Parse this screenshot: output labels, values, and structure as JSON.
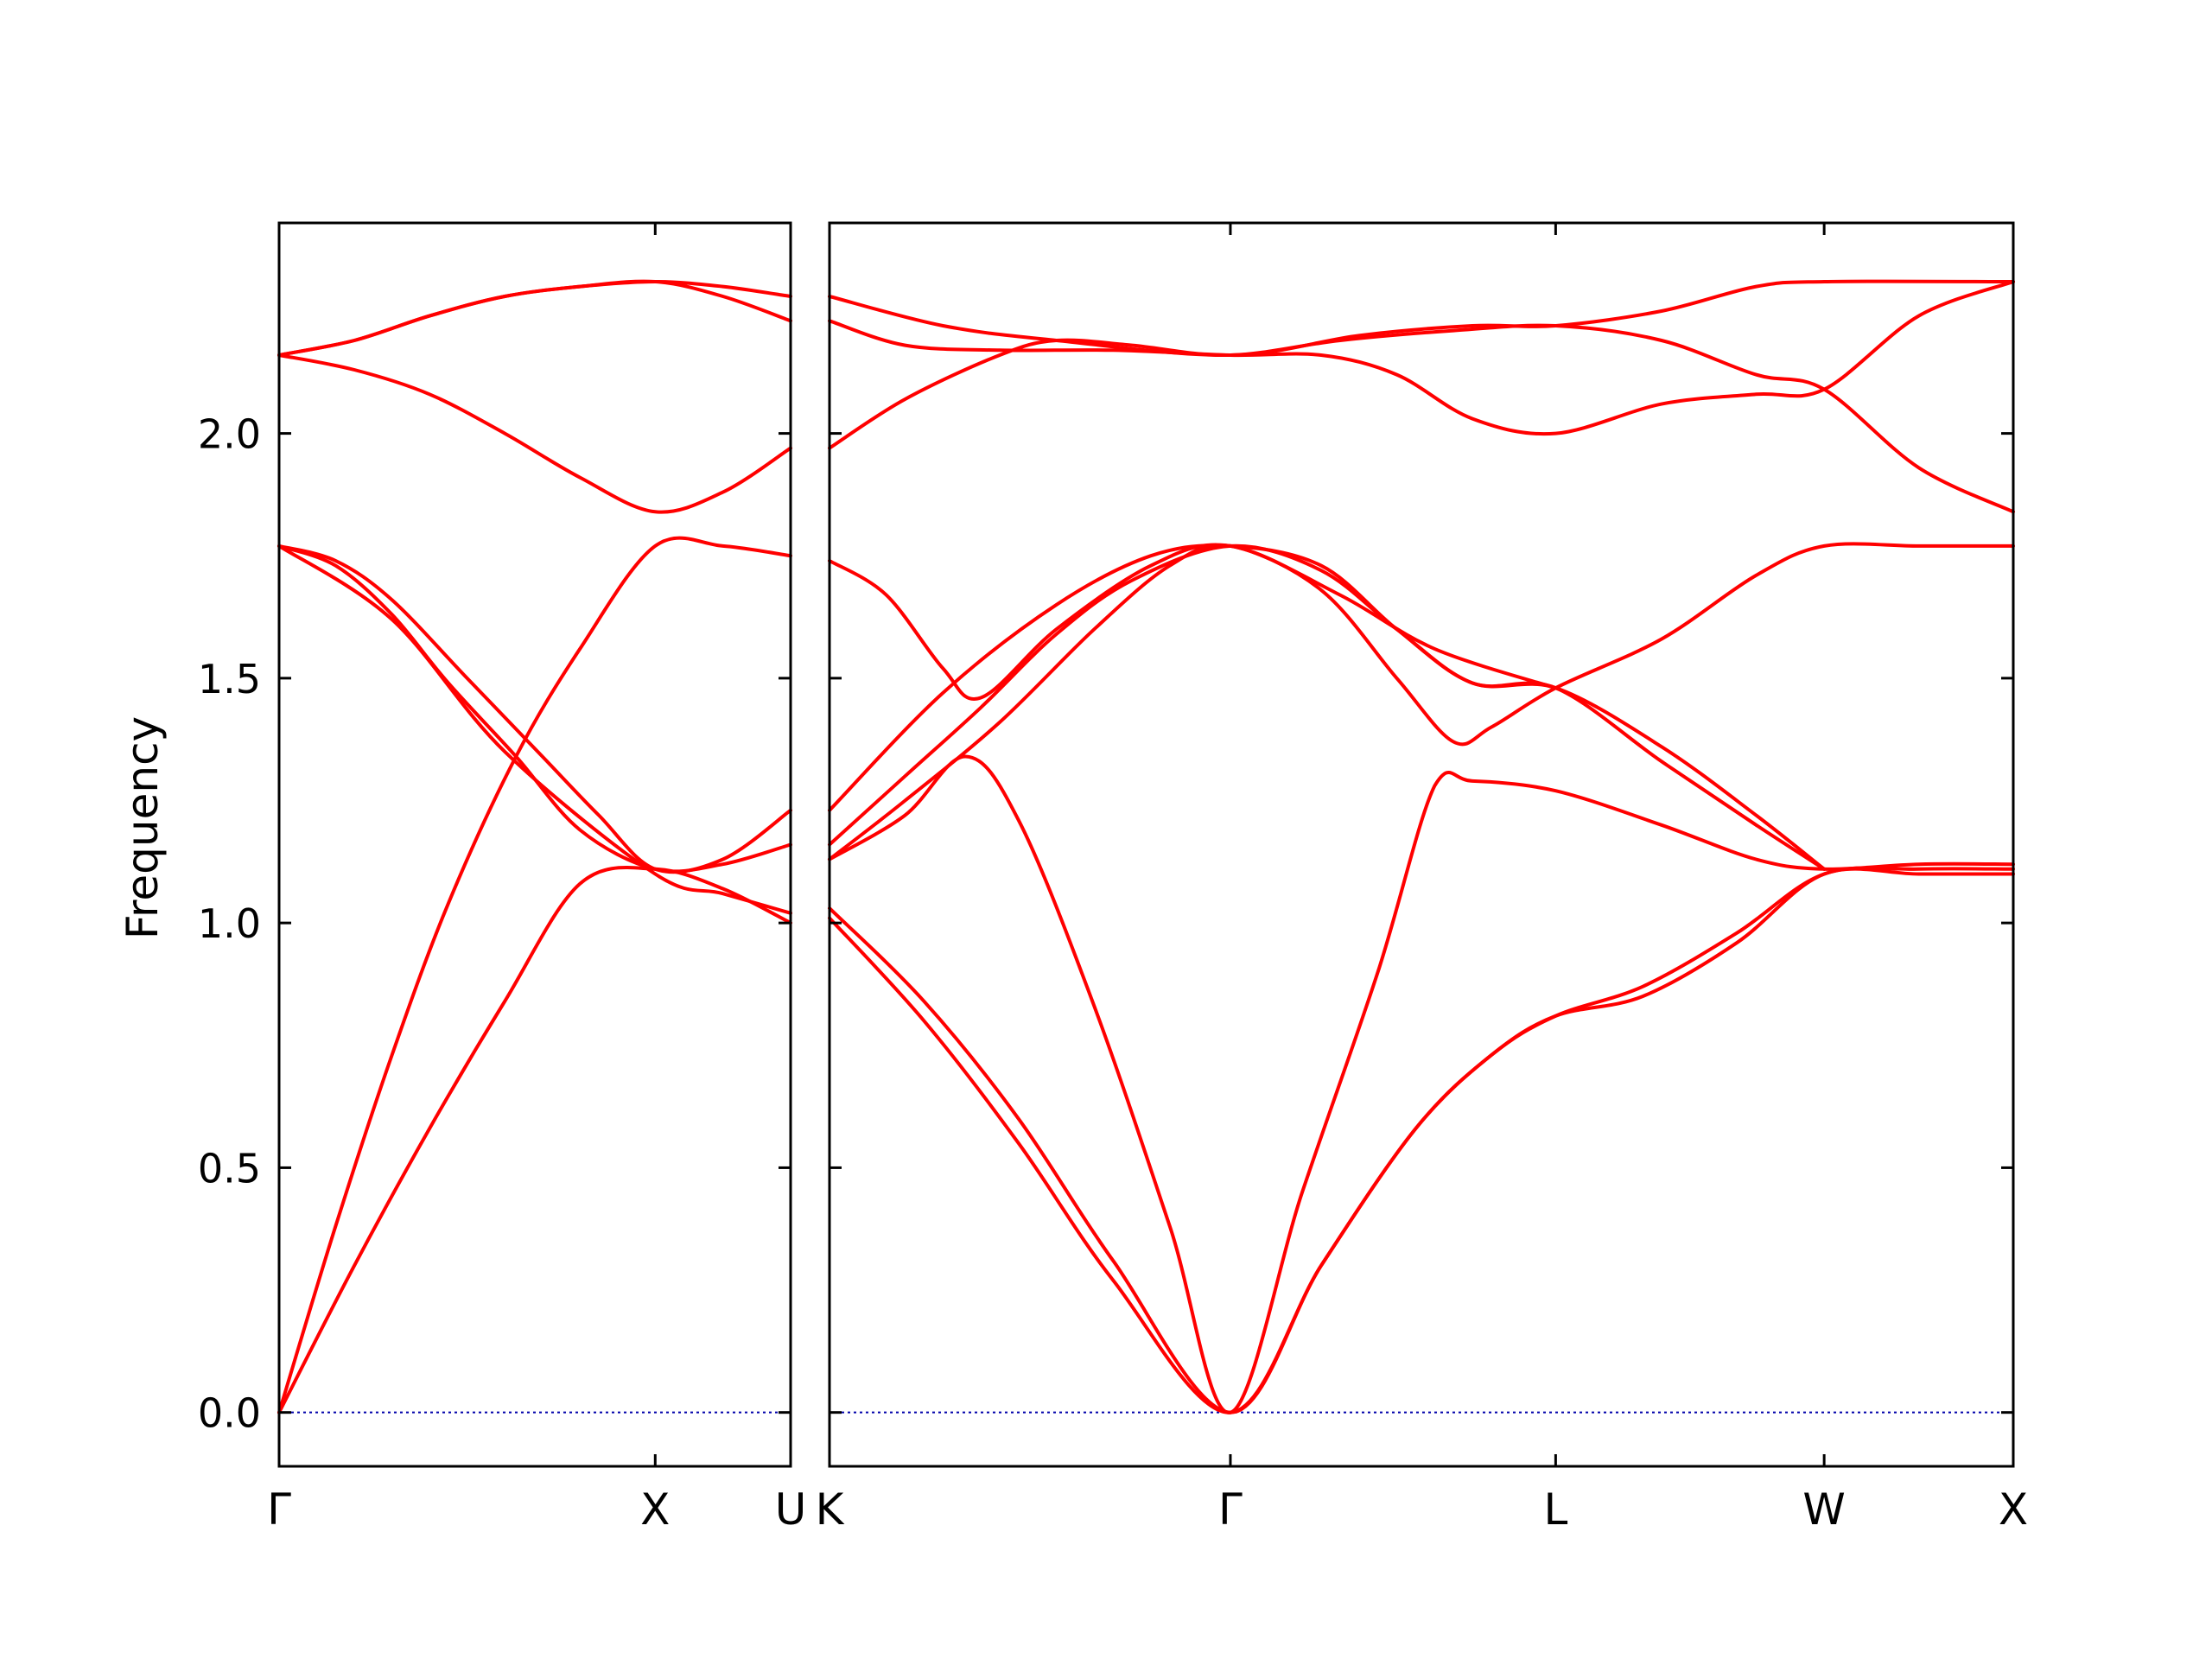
{
  "chart_data": {
    "type": "line",
    "title": "",
    "xlabel": "",
    "ylabel": "Frequency",
    "ylim": [
      -0.11,
      2.43
    ],
    "yticks": [
      "0.0",
      "0.5",
      "1.0",
      "1.5",
      "2.0"
    ],
    "yticks_values": [
      0.0,
      0.5,
      1.0,
      1.5,
      2.0
    ],
    "grid": false,
    "legend": "none",
    "colors": {
      "bands": "#ff0000",
      "zero_line": "#0000aa",
      "axes": "#000000"
    },
    "panels": [
      {
        "labels": [
          {
            "text": "Γ",
            "x": 0.0
          },
          {
            "text": "X",
            "x": 1.0
          },
          {
            "text": "U",
            "x": 1.36
          }
        ],
        "xlim": [
          0.0,
          1.36
        ],
        "bands": [
          [
            [
              0.0,
              0.0
            ],
            [
              0.2,
              0.3
            ],
            [
              0.4,
              0.58
            ],
            [
              0.6,
              0.84
            ],
            [
              0.8,
              1.08
            ],
            [
              1.0,
              1.11
            ],
            [
              1.18,
              1.07
            ],
            [
              1.36,
              1.0
            ]
          ],
          [
            [
              0.0,
              0.0
            ],
            [
              0.15,
              0.38
            ],
            [
              0.3,
              0.73
            ],
            [
              0.45,
              1.04
            ],
            [
              0.63,
              1.34
            ],
            [
              0.8,
              1.56
            ],
            [
              1.0,
              1.77
            ],
            [
              1.18,
              1.77
            ],
            [
              1.36,
              1.75
            ]
          ],
          [
            [
              0.0,
              1.77
            ],
            [
              0.15,
              1.73
            ],
            [
              0.3,
              1.63
            ],
            [
              0.45,
              1.49
            ],
            [
              0.63,
              1.34
            ],
            [
              0.8,
              1.19
            ],
            [
              1.0,
              1.11
            ],
            [
              1.18,
              1.12
            ],
            [
              1.36,
              1.16
            ]
          ],
          [
            [
              0.0,
              1.77
            ],
            [
              0.15,
              1.74
            ],
            [
              0.3,
              1.66
            ],
            [
              0.5,
              1.5
            ],
            [
              0.7,
              1.34
            ],
            [
              0.85,
              1.22
            ],
            [
              1.0,
              1.11
            ],
            [
              1.18,
              1.13
            ],
            [
              1.36,
              1.23
            ]
          ],
          [
            [
              0.0,
              1.77
            ],
            [
              0.3,
              1.62
            ],
            [
              0.6,
              1.35
            ],
            [
              1.0,
              1.1
            ],
            [
              1.18,
              1.06
            ],
            [
              1.36,
              1.02
            ]
          ],
          [
            [
              0.0,
              2.16
            ],
            [
              0.2,
              2.13
            ],
            [
              0.4,
              2.08
            ],
            [
              0.6,
              2.0
            ],
            [
              0.8,
              1.91
            ],
            [
              1.0,
              1.84
            ],
            [
              1.18,
              1.88
            ],
            [
              1.36,
              1.97
            ]
          ],
          [
            [
              0.0,
              2.16
            ],
            [
              0.2,
              2.19
            ],
            [
              0.4,
              2.24
            ],
            [
              0.6,
              2.28
            ],
            [
              0.8,
              2.3
            ],
            [
              1.0,
              2.31
            ],
            [
              1.18,
              2.3
            ],
            [
              1.36,
              2.28
            ]
          ],
          [
            [
              0.0,
              2.16
            ],
            [
              0.2,
              2.19
            ],
            [
              0.4,
              2.24
            ],
            [
              0.6,
              2.28
            ],
            [
              0.8,
              2.3
            ],
            [
              1.0,
              2.31
            ],
            [
              1.18,
              2.28
            ],
            [
              1.36,
              2.23
            ]
          ]
        ]
      },
      {
        "labels": [
          {
            "text": "K",
            "x": 0.0
          },
          {
            "text": "Γ",
            "x": 1.06
          },
          {
            "text": "L",
            "x": 1.92
          },
          {
            "text": "W",
            "x": 2.63
          },
          {
            "text": "X",
            "x": 3.13
          }
        ],
        "xlim": [
          0.0,
          3.13
        ],
        "bands": [
          [
            [
              0.0,
              1.01
            ],
            [
              0.25,
              0.8
            ],
            [
              0.5,
              0.55
            ],
            [
              0.75,
              0.27
            ],
            [
              1.06,
              0.0
            ],
            [
              1.3,
              0.3
            ],
            [
              1.55,
              0.58
            ],
            [
              1.75,
              0.73
            ],
            [
              1.92,
              0.81
            ],
            [
              2.15,
              0.85
            ],
            [
              2.4,
              0.96
            ],
            [
              2.63,
              1.1
            ],
            [
              2.88,
              1.1
            ],
            [
              3.13,
              1.1
            ]
          ],
          [
            [
              0.0,
              1.03
            ],
            [
              0.25,
              0.84
            ],
            [
              0.5,
              0.6
            ],
            [
              0.75,
              0.31
            ],
            [
              1.06,
              0.0
            ],
            [
              1.3,
              0.3
            ],
            [
              1.55,
              0.58
            ],
            [
              1.75,
              0.73
            ],
            [
              1.92,
              0.81
            ],
            [
              2.15,
              0.87
            ],
            [
              2.4,
              0.98
            ],
            [
              2.63,
              1.1
            ],
            [
              2.88,
              1.11
            ],
            [
              3.13,
              1.11
            ]
          ],
          [
            [
              0.0,
              1.13
            ],
            [
              0.2,
              1.22
            ],
            [
              0.36,
              1.34
            ],
            [
              0.5,
              1.21
            ],
            [
              0.7,
              0.83
            ],
            [
              0.9,
              0.38
            ],
            [
              1.06,
              0.0
            ],
            [
              1.25,
              0.45
            ],
            [
              1.45,
              0.9
            ],
            [
              1.6,
              1.28
            ],
            [
              1.7,
              1.29
            ],
            [
              1.92,
              1.27
            ],
            [
              2.2,
              1.2
            ],
            [
              2.45,
              1.13
            ],
            [
              2.63,
              1.11
            ],
            [
              2.88,
              1.12
            ],
            [
              3.13,
              1.12
            ]
          ],
          [
            [
              0.0,
              1.16
            ],
            [
              0.2,
              1.3
            ],
            [
              0.4,
              1.44
            ],
            [
              0.6,
              1.59
            ],
            [
              0.8,
              1.7
            ],
            [
              1.06,
              1.77
            ],
            [
              1.3,
              1.72
            ],
            [
              1.5,
              1.6
            ],
            [
              1.7,
              1.49
            ],
            [
              1.92,
              1.48
            ],
            [
              2.2,
              1.33
            ],
            [
              2.45,
              1.2
            ],
            [
              2.63,
              1.11
            ]
          ],
          [
            [
              0.0,
              1.23
            ],
            [
              0.3,
              1.47
            ],
            [
              0.6,
              1.65
            ],
            [
              0.85,
              1.75
            ],
            [
              1.06,
              1.77
            ],
            [
              1.3,
              1.73
            ],
            [
              1.5,
              1.6
            ],
            [
              1.7,
              1.49
            ],
            [
              1.92,
              1.48
            ],
            [
              2.2,
              1.36
            ],
            [
              2.45,
              1.22
            ],
            [
              2.63,
              1.11
            ]
          ],
          [
            [
              0.0,
              1.13
            ],
            [
              0.2,
              1.25
            ],
            [
              0.45,
              1.41
            ],
            [
              0.7,
              1.6
            ],
            [
              0.9,
              1.73
            ],
            [
              1.06,
              1.77
            ],
            [
              1.3,
              1.68
            ],
            [
              1.5,
              1.5
            ],
            [
              1.65,
              1.37
            ],
            [
              1.75,
              1.4
            ],
            [
              1.92,
              1.48
            ],
            [
              2.2,
              1.58
            ],
            [
              2.45,
              1.71
            ],
            [
              2.63,
              1.77
            ],
            [
              2.88,
              1.77
            ],
            [
              3.13,
              1.77
            ]
          ],
          [
            [
              0.0,
              1.74
            ],
            [
              0.15,
              1.67
            ],
            [
              0.3,
              1.52
            ],
            [
              0.4,
              1.46
            ],
            [
              0.6,
              1.6
            ],
            [
              0.85,
              1.73
            ],
            [
              1.06,
              1.77
            ],
            [
              1.35,
              1.67
            ],
            [
              1.6,
              1.56
            ],
            [
              1.92,
              1.48
            ]
          ],
          [
            [
              0.0,
              1.97
            ],
            [
              0.2,
              2.07
            ],
            [
              0.45,
              2.16
            ],
            [
              0.6,
              2.19
            ],
            [
              0.8,
              2.18
            ],
            [
              1.06,
              2.16
            ],
            [
              1.35,
              2.19
            ],
            [
              1.65,
              2.21
            ],
            [
              1.92,
              2.22
            ],
            [
              2.2,
              2.19
            ],
            [
              2.45,
              2.12
            ],
            [
              2.63,
              2.09
            ],
            [
              2.88,
              1.93
            ],
            [
              3.13,
              1.84
            ]
          ],
          [
            [
              0.0,
              2.23
            ],
            [
              0.2,
              2.18
            ],
            [
              0.45,
              2.17
            ],
            [
              0.75,
              2.17
            ],
            [
              1.06,
              2.16
            ],
            [
              1.3,
              2.16
            ],
            [
              1.5,
              2.12
            ],
            [
              1.7,
              2.03
            ],
            [
              1.92,
              2.0
            ],
            [
              2.2,
              2.06
            ],
            [
              2.45,
              2.08
            ],
            [
              2.63,
              2.09
            ],
            [
              2.88,
              2.24
            ],
            [
              3.13,
              2.31
            ]
          ],
          [
            [
              0.0,
              2.28
            ],
            [
              0.3,
              2.22
            ],
            [
              0.6,
              2.19
            ],
            [
              1.06,
              2.16
            ],
            [
              1.4,
              2.2
            ],
            [
              1.7,
              2.22
            ],
            [
              1.92,
              2.22
            ],
            [
              2.2,
              2.25
            ],
            [
              2.45,
              2.3
            ],
            [
              2.63,
              2.31
            ],
            [
              3.13,
              2.31
            ]
          ]
        ]
      }
    ]
  }
}
